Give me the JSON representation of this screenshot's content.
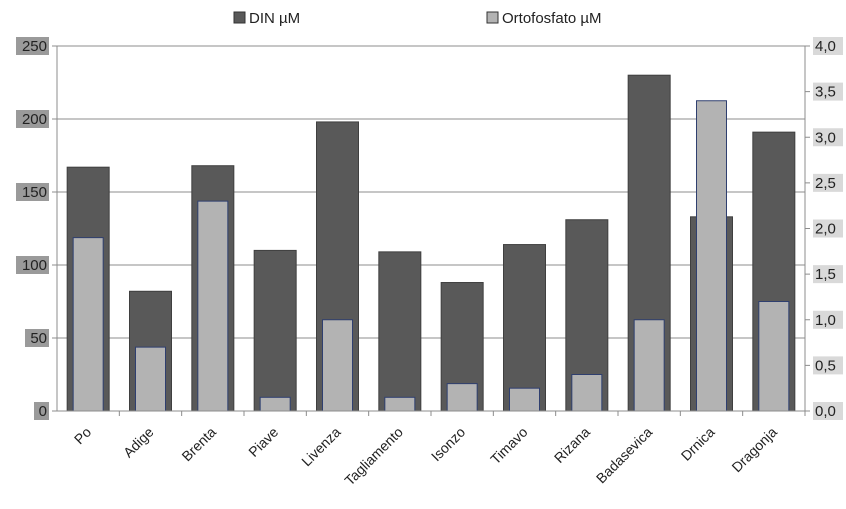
{
  "chart_data": {
    "type": "bar",
    "categories": [
      "Po",
      "Adige",
      "Brenta",
      "Piave",
      "Livenza",
      "Tagliamento",
      "Isonzo",
      "Timavo",
      "Rizana",
      "Badasevica",
      "Drnica",
      "Dragonja"
    ],
    "series": [
      {
        "name": "DIN µM",
        "axis": "left",
        "color": "#595959",
        "values": [
          167,
          82,
          168,
          110,
          198,
          109,
          88,
          114,
          131,
          230,
          133,
          191
        ]
      },
      {
        "name": "Ortofosfato µM",
        "axis": "right",
        "color": "#b3b3b3",
        "values": [
          1.9,
          0.7,
          2.3,
          0.15,
          1.0,
          0.15,
          0.3,
          0.25,
          0.4,
          1.0,
          3.4,
          1.2
        ]
      }
    ],
    "y_left": {
      "ylim": [
        0,
        250
      ],
      "ticks": [
        "0",
        "50",
        "100",
        "150",
        "200",
        "250"
      ]
    },
    "y_right": {
      "ylim": [
        0,
        4
      ],
      "ticks": [
        "0,0",
        "0,5",
        "1,0",
        "1,5",
        "2,0",
        "2,5",
        "3,0",
        "3,5",
        "4,0"
      ]
    },
    "grid": true,
    "legend": "top-center",
    "title": "",
    "xlabel": "",
    "ylabel": ""
  }
}
